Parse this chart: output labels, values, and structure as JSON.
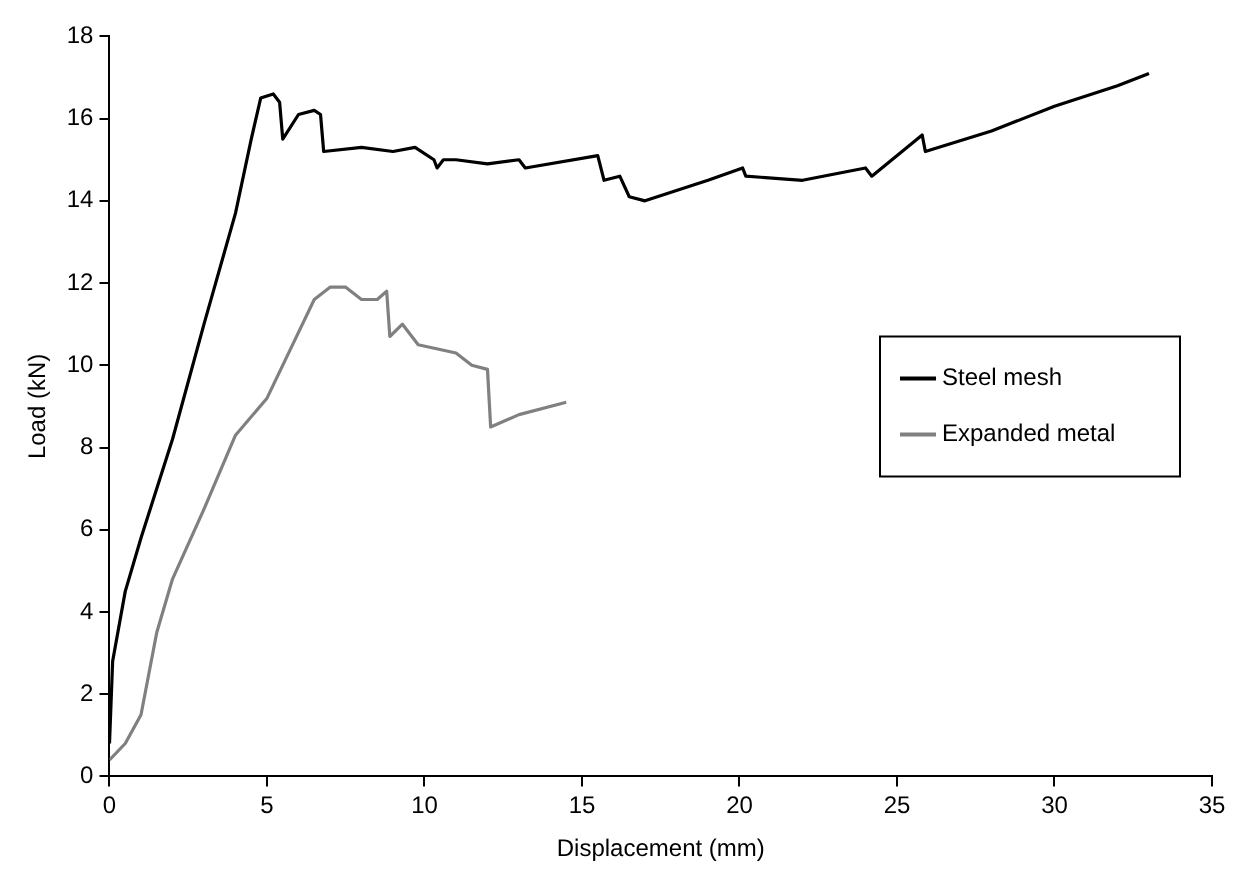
{
  "chart_data": {
    "type": "line",
    "xlabel": "Displacement (mm)",
    "ylabel": "Load (kN)",
    "xlim": [
      0,
      35
    ],
    "xticks": [
      0,
      5,
      10,
      15,
      20,
      25,
      30,
      35
    ],
    "ylim": [
      0,
      18
    ],
    "yticks": [
      0,
      2,
      4,
      6,
      8,
      10,
      12,
      14,
      16,
      18
    ],
    "grid": false,
    "legend": "right",
    "marker": "none",
    "line_style": "solid",
    "series": [
      {
        "name": "Steel mesh",
        "color": "#000000",
        "x": [
          0,
          0.1,
          0.5,
          1,
          2,
          3,
          4,
          4.5,
          4.8,
          5.2,
          5.4,
          5.5,
          6,
          6.5,
          6.7,
          6.8,
          8,
          9,
          9.7,
          10.3,
          10.4,
          10.6,
          11,
          12,
          13,
          13.2,
          15.5,
          15.7,
          16.2,
          16.5,
          17,
          19,
          20.1,
          20.2,
          22,
          24,
          24.2,
          25.8,
          25.9,
          28,
          30,
          32,
          33
        ],
        "values": [
          0.8,
          2.8,
          4.5,
          5.8,
          8.2,
          11,
          13.7,
          15.5,
          16.5,
          16.6,
          16.4,
          15.5,
          16.1,
          16.2,
          16.1,
          15.2,
          15.3,
          15.2,
          15.3,
          15,
          14.8,
          15,
          15,
          14.9,
          15,
          14.8,
          15.1,
          14.5,
          14.6,
          14.1,
          14,
          14.5,
          14.8,
          14.6,
          14.5,
          14.8,
          14.6,
          15.6,
          15.2,
          15.7,
          16.3,
          16.8,
          17.1
        ]
      },
      {
        "name": "Expanded metal",
        "color": "#808080",
        "x": [
          0,
          0.5,
          1,
          1.5,
          2,
          3,
          4,
          5,
          6,
          6.5,
          7,
          7.5,
          8,
          8.5,
          8.8,
          8.9,
          9.3,
          9.8,
          11,
          11.5,
          12,
          12.1,
          13,
          14.5
        ],
        "values": [
          0.4,
          0.8,
          1.5,
          3.5,
          4.8,
          6.5,
          8.3,
          9.2,
          10.8,
          11.6,
          11.9,
          11.9,
          11.6,
          11.6,
          11.8,
          10.7,
          11,
          10.5,
          10.3,
          10,
          9.9,
          8.5,
          8.8,
          9.1
        ]
      }
    ]
  }
}
